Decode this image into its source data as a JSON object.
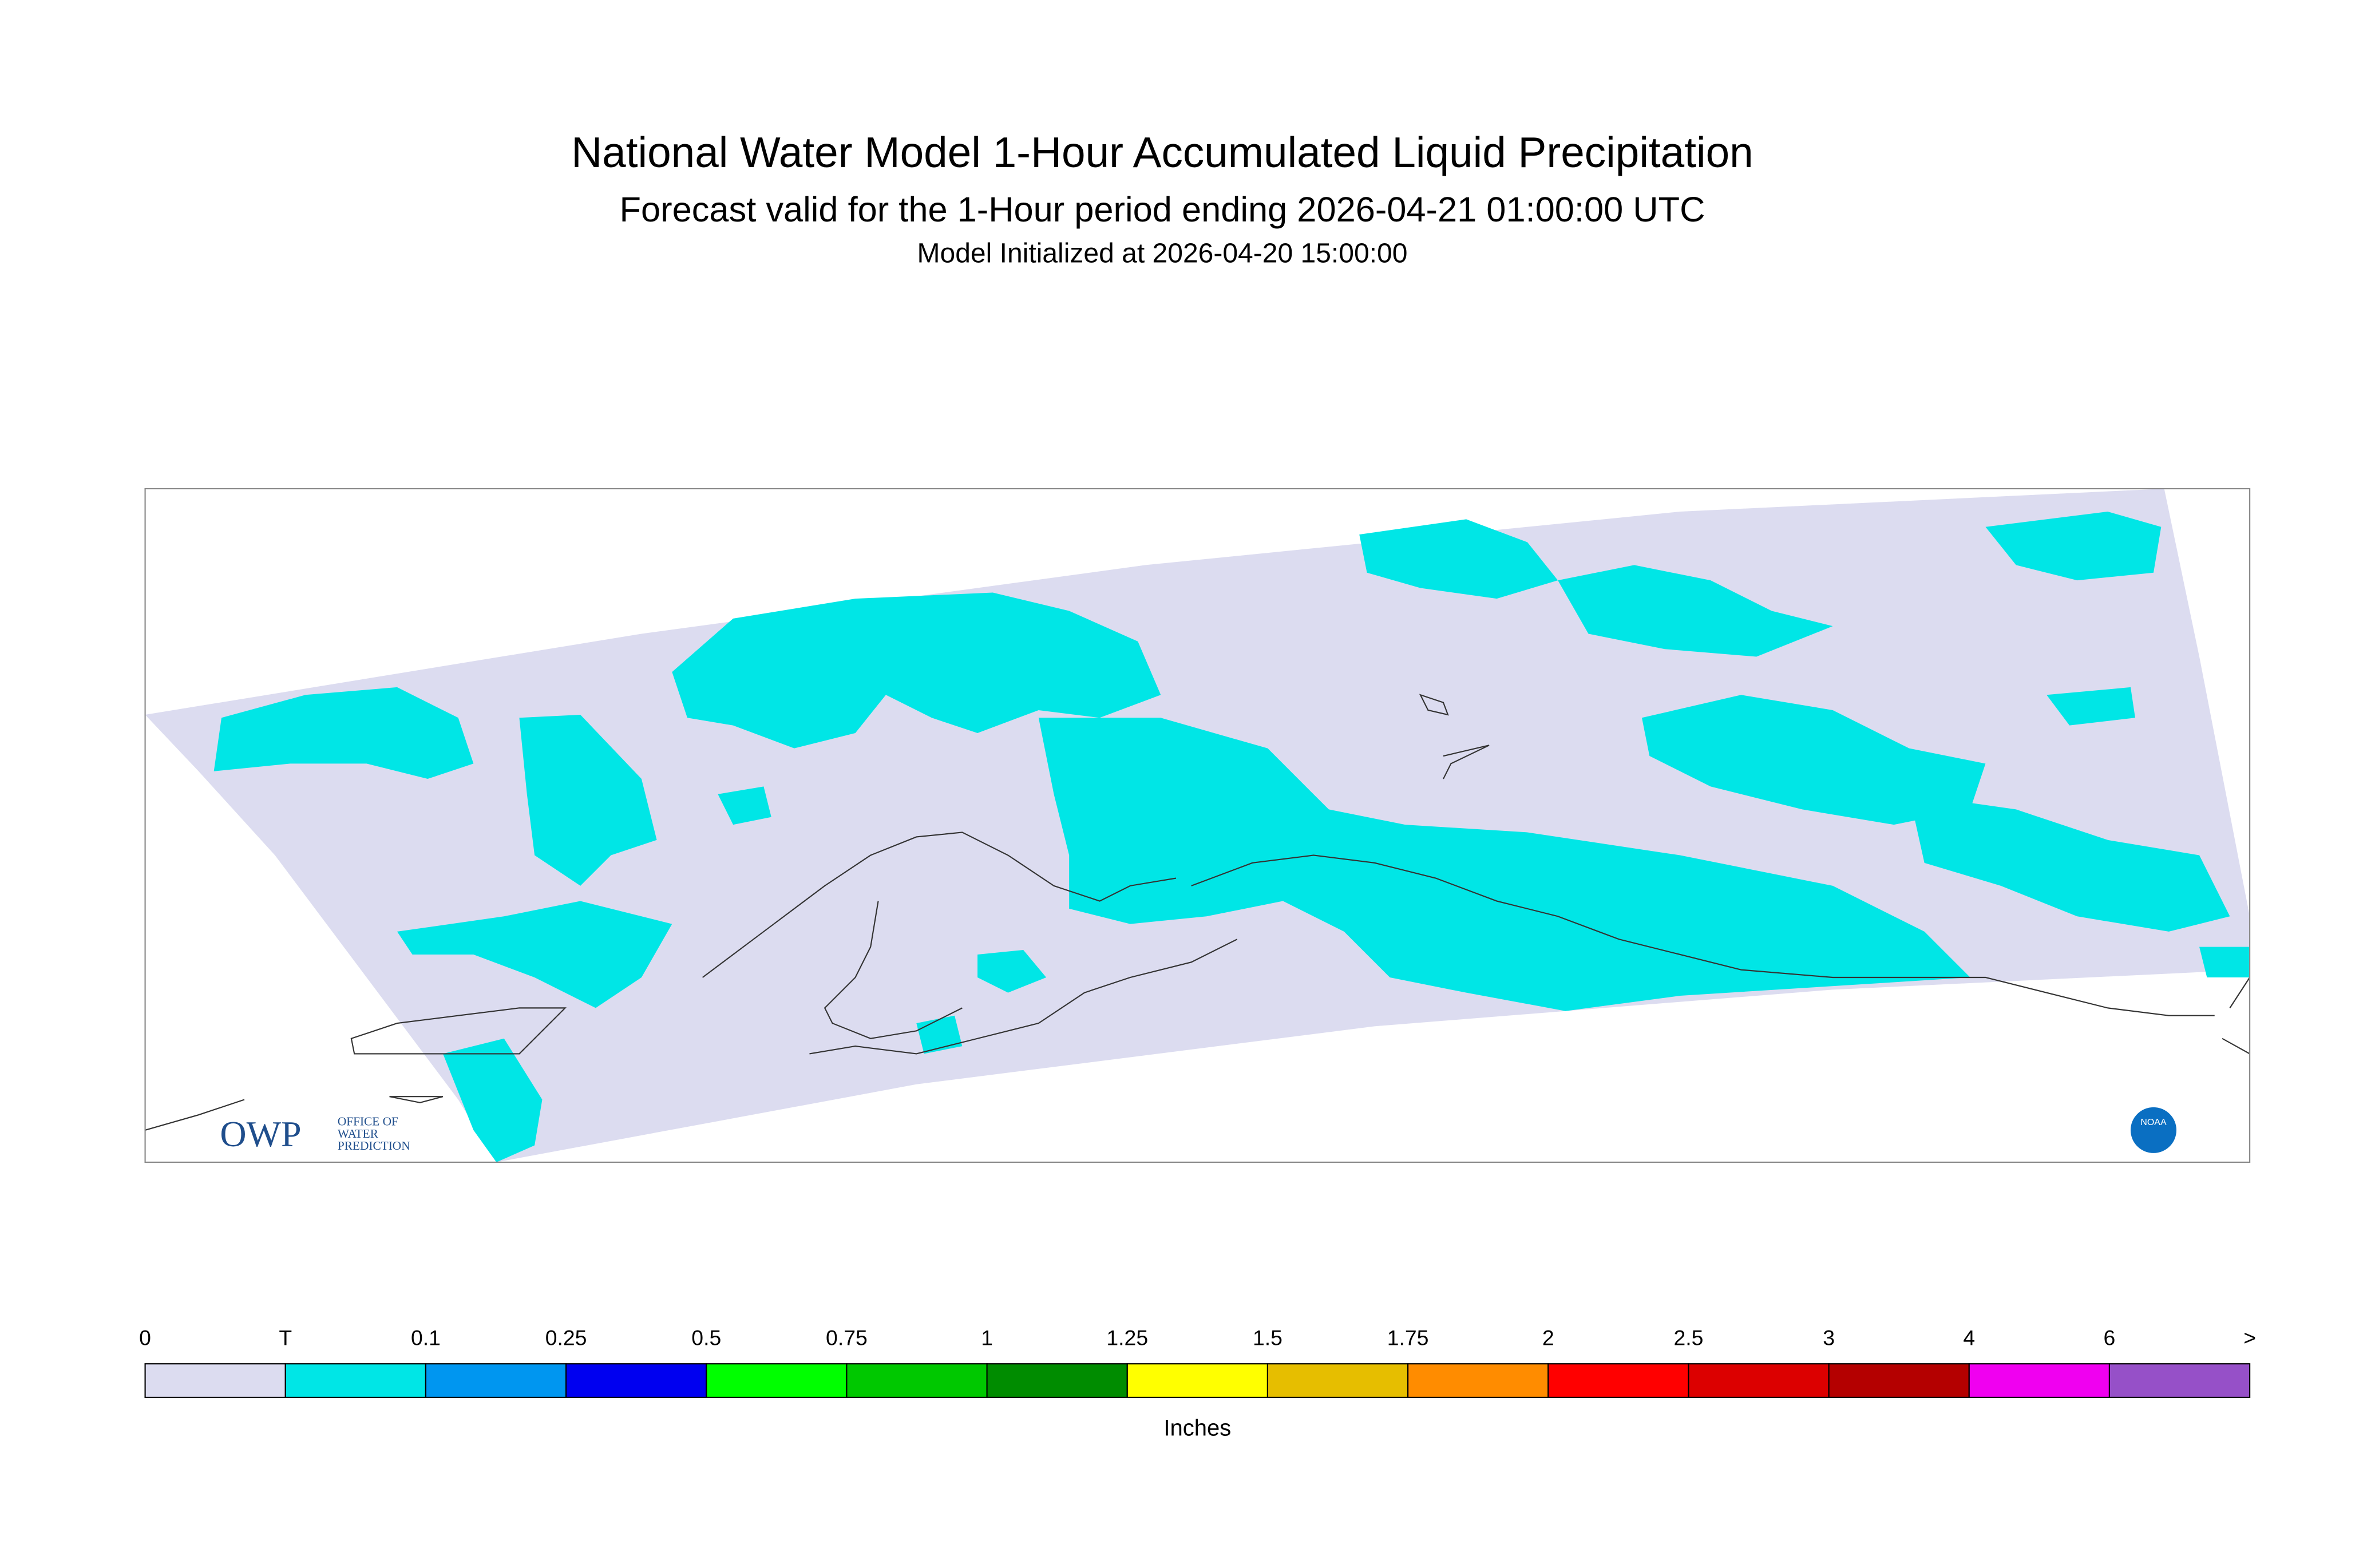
{
  "header": {
    "title": "National Water Model 1-Hour Accumulated Liquid Precipitation",
    "subtitle": "Forecast valid for the 1-Hour period ending 2026-04-21 01:00:00 UTC",
    "init": "Model Initialized at 2026-04-20 15:00:00"
  },
  "colorbar": {
    "labels": [
      0,
      "T",
      0.1,
      0.25,
      0.5,
      0.75,
      1,
      1.25,
      1.5,
      1.75,
      2,
      2.5,
      3,
      4,
      6,
      ">"
    ],
    "colors": [
      "#dcdcf0",
      "#00e6e6",
      "#0096f0",
      "#0000f0",
      "#00ff00",
      "#00c800",
      "#008c00",
      "#ffff00",
      "#e6be00",
      "#ff8c00",
      "#ff0000",
      "#dc0000",
      "#b40000",
      "#f000f0",
      "#9650c8"
    ],
    "unit": "Inches"
  },
  "logos": {
    "owp": "OWP",
    "owp_lines": [
      "OFFICE OF",
      "WATER",
      "PREDICTION"
    ],
    "noaa": "NOAA"
  }
}
